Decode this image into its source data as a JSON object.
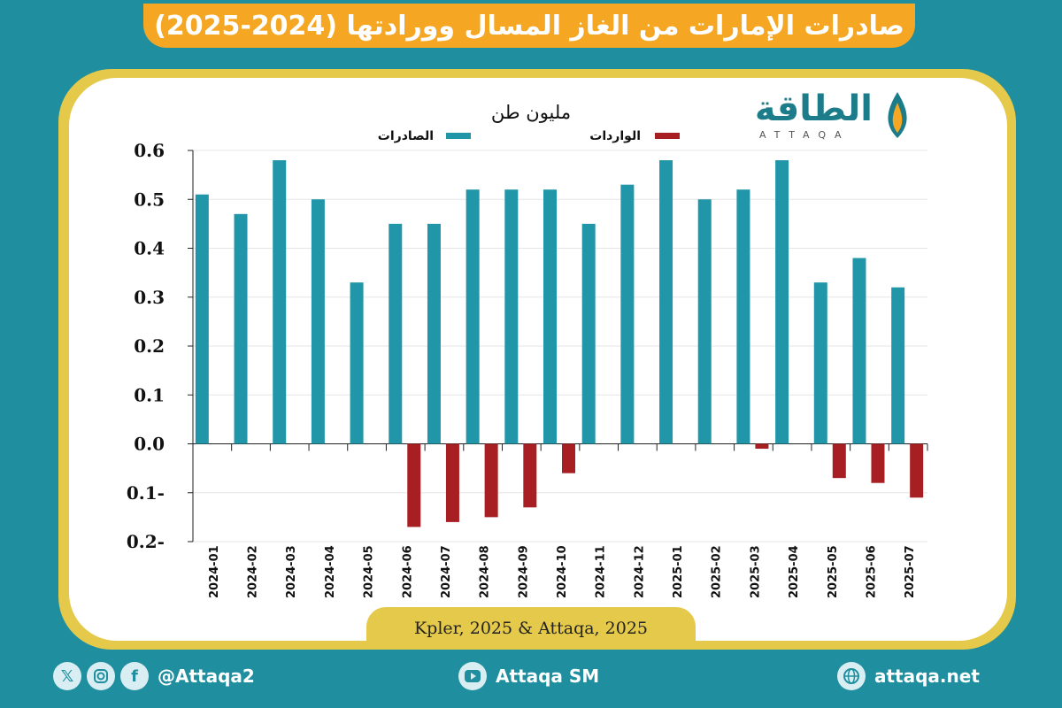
{
  "title": "صادرات الإمارات من الغاز المسال وورادتها (2024-2025)",
  "logo": {
    "arabic": "الطاقة",
    "latin": "ATTAQA"
  },
  "source": "Kpler, 2025 & Attaqa, 2025",
  "footer": {
    "social_handle": "@Attaqa2",
    "youtube": "Attaqa SM",
    "website": "attaqa.net"
  },
  "icons": [
    "x-icon",
    "instagram-icon",
    "facebook-icon",
    "youtube-icon",
    "globe-icon"
  ],
  "colors": {
    "exports": "#2196a8",
    "imports": "#a81f23",
    "banner": "#f5a623",
    "frame": "#e5c94a",
    "background": "#1f8fa0"
  },
  "chart_data": {
    "type": "bar",
    "unit_label": "مليون طن",
    "legend_position": "top",
    "categories": [
      "2024-01",
      "2024-02",
      "2024-03",
      "2024-04",
      "2024-05",
      "2024-06",
      "2024-07",
      "2024-08",
      "2024-09",
      "2024-10",
      "2024-11",
      "2024-12",
      "2025-01",
      "2025-02",
      "2025-03",
      "2025-04",
      "2025-05",
      "2025-06",
      "2025-07"
    ],
    "series": [
      {
        "name": "الصادرات",
        "values": [
          0.51,
          0.47,
          0.58,
          0.5,
          0.33,
          0.45,
          0.45,
          0.52,
          0.52,
          0.52,
          0.45,
          0.53,
          0.58,
          0.5,
          0.52,
          0.58,
          0.33,
          0.38,
          0.32
        ]
      },
      {
        "name": "الواردات",
        "values": [
          0,
          0,
          0,
          0,
          0,
          -0.17,
          -0.16,
          -0.15,
          -0.13,
          -0.06,
          0,
          0,
          0,
          0,
          -0.01,
          0,
          -0.07,
          -0.08,
          -0.11
        ]
      }
    ],
    "ylim": [
      -0.2,
      0.6
    ],
    "yticks": [
      "0.6",
      "0.5",
      "0.4",
      "0.3",
      "0.2",
      "0.1",
      "0.0",
      "0.1-",
      "0.2-"
    ],
    "ytick_values": [
      0.6,
      0.5,
      0.4,
      0.3,
      0.2,
      0.1,
      0.0,
      -0.1,
      -0.2
    ],
    "grid": true
  }
}
